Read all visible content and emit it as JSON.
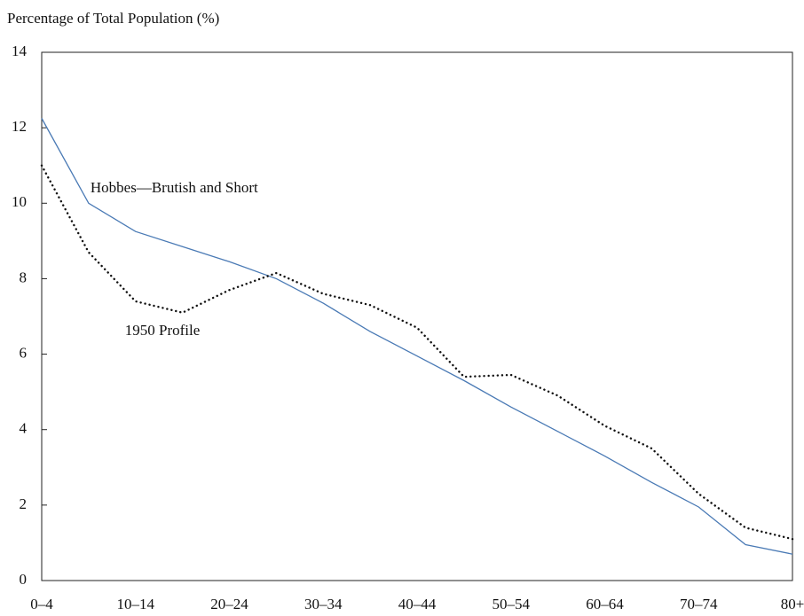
{
  "chart_data": {
    "type": "line",
    "y_axis_label": "Percentage of Total Population (%)",
    "categories": [
      "0–4",
      null,
      "10–14",
      null,
      "20–24",
      null,
      "30–34",
      null,
      "40–44",
      null,
      "50–54",
      null,
      "60–64",
      null,
      "70–74",
      null,
      "80+"
    ],
    "series": [
      {
        "name": "Hobbes—Brutish and Short",
        "color": "#4a7ab5",
        "style": "solid",
        "values": [
          12.25,
          10.0,
          9.25,
          8.85,
          8.45,
          8.0,
          7.35,
          6.6,
          5.95,
          5.3,
          4.6,
          3.95,
          3.3,
          2.6,
          1.95,
          0.95,
          0.7
        ]
      },
      {
        "name": "1950 Profile",
        "color": "#111111",
        "style": "dotted",
        "values": [
          11.0,
          8.7,
          7.4,
          7.1,
          7.7,
          8.15,
          7.6,
          7.3,
          6.7,
          5.4,
          5.45,
          4.9,
          4.1,
          3.5,
          2.3,
          1.4,
          1.1
        ]
      }
    ],
    "ylim": [
      0,
      14
    ],
    "yticks": [
      0,
      2,
      4,
      6,
      8,
      10,
      12,
      14
    ],
    "grid": false
  }
}
